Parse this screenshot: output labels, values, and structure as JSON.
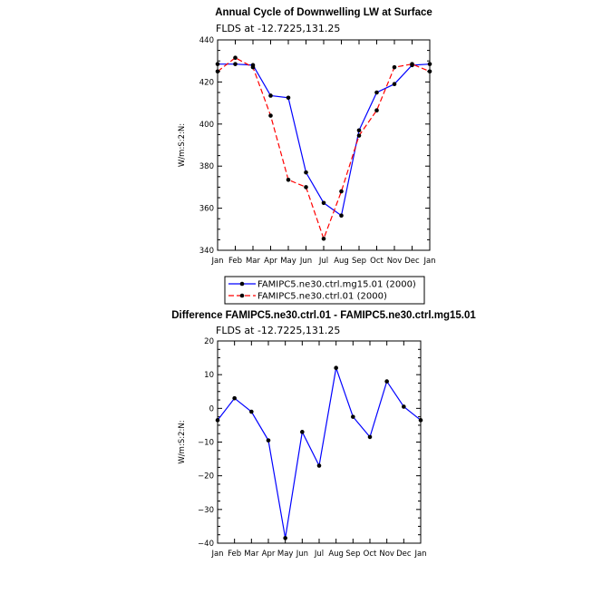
{
  "chart_data": [
    {
      "type": "line",
      "title": "Annual Cycle of Downwelling LW at Surface",
      "subtitle": "FLDS at -12.7225,131.25",
      "xlabel": "",
      "ylabel": "W/m:S:2:N:",
      "categories": [
        "Jan",
        "Feb",
        "Mar",
        "Apr",
        "May",
        "Jun",
        "Jul",
        "Aug",
        "Sep",
        "Oct",
        "Nov",
        "Dec",
        "Jan"
      ],
      "ylim": [
        340,
        440
      ],
      "yticks": [
        "340",
        "360",
        "380",
        "400",
        "420",
        "440"
      ],
      "legend_position": "bottom",
      "series": [
        {
          "name": "FAMIPC5.ne30.ctrl.mg15.01 (2000)",
          "color": "#0000ff",
          "dash": "solid",
          "values": [
            428.5,
            428.5,
            428.0,
            413.5,
            412.5,
            377.0,
            362.5,
            356.5,
            397.0,
            415.0,
            419.0,
            428.0,
            428.5
          ]
        },
        {
          "name": "FAMIPC5.ne30.ctrl.01 (2000)",
          "color": "#ff0000",
          "dash": "dashed",
          "values": [
            425.0,
            431.5,
            427.0,
            404.0,
            373.5,
            370.0,
            345.5,
            368.0,
            394.5,
            406.5,
            427.0,
            428.5,
            425.0
          ]
        }
      ]
    },
    {
      "type": "line",
      "title": "Difference FAMIPC5.ne30.ctrl.01 - FAMIPC5.ne30.ctrl.mg15.01",
      "subtitle": "FLDS at -12.7225,131.25",
      "xlabel": "",
      "ylabel": "W/m:S:2:N:",
      "categories": [
        "Jan",
        "Feb",
        "Mar",
        "Apr",
        "May",
        "Jun",
        "Jul",
        "Aug",
        "Sep",
        "Oct",
        "Nov",
        "Dec",
        "Jan"
      ],
      "ylim": [
        -40,
        20
      ],
      "yticks": [
        "−40",
        "−30",
        "−20",
        "−10",
        "0",
        "10",
        "20"
      ],
      "series": [
        {
          "color": "#0000ff",
          "dash": "solid",
          "values": [
            -3.5,
            3.0,
            -1.0,
            -9.5,
            -38.5,
            -7.0,
            -17.0,
            12.0,
            -2.5,
            -8.5,
            8.0,
            0.5,
            -3.5
          ]
        }
      ]
    }
  ]
}
